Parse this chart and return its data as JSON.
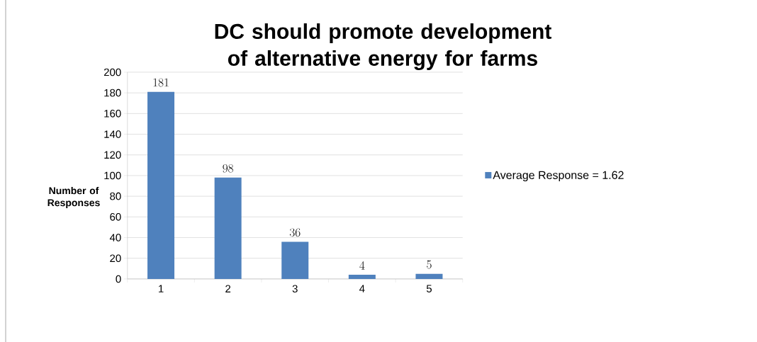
{
  "chart_data": {
    "type": "bar",
    "title": "DC should promote development of alternative energy for farms",
    "ylabel": "Number of Responses",
    "categories": [
      "1",
      "2",
      "3",
      "4",
      "5"
    ],
    "series": [
      {
        "name": "Average Response = 1.62",
        "color": "#4f81bd",
        "values": [
          181,
          98,
          36,
          4,
          5
        ]
      }
    ],
    "ylim": [
      0,
      200
    ],
    "yticks": [
      0,
      20,
      40,
      60,
      80,
      100,
      120,
      140,
      160,
      180,
      200
    ],
    "grid": "y",
    "legend": "right",
    "data_labels": true
  }
}
